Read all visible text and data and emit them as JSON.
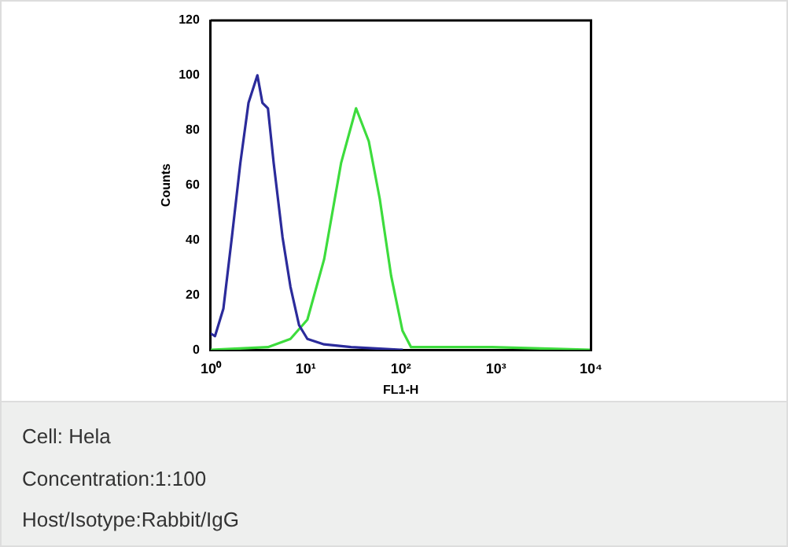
{
  "chart_data": {
    "type": "line",
    "xlabel": "FL1-H",
    "ylabel": "Counts",
    "log": "x",
    "xlim": [
      1,
      10000
    ],
    "xticks": [
      {
        "value": 1,
        "label": "10⁰"
      },
      {
        "value": 10,
        "label": "10¹"
      },
      {
        "value": 100,
        "label": "10²"
      },
      {
        "value": 1000,
        "label": "10³"
      },
      {
        "value": 10000,
        "label": "10⁴"
      }
    ],
    "ylim": [
      0,
      120
    ],
    "yticks": [
      0,
      20,
      40,
      60,
      80,
      100,
      120
    ],
    "grid": false,
    "legend": false,
    "marker": "none",
    "series": [
      {
        "color": "#2b2b9b",
        "x": [
          1,
          1.11,
          1.36,
          1.67,
          2.05,
          2.5,
          3.1,
          3.5,
          4.0,
          4.6,
          5.7,
          6.9,
          8.5,
          10.4,
          15.6,
          30,
          105
        ],
        "values": [
          6,
          5,
          15,
          41,
          68,
          90,
          100,
          90,
          88,
          68,
          41,
          23,
          9,
          4,
          2,
          1,
          0
        ]
      },
      {
        "color": "#3ddc3d",
        "x": [
          1,
          4.0,
          6.9,
          10.4,
          15.6,
          23.5,
          33.8,
          46,
          60,
          79,
          104,
          128,
          910,
          10000
        ],
        "values": [
          0,
          1,
          4,
          11,
          33,
          68,
          88,
          76,
          55,
          27,
          7,
          1,
          1,
          0
        ]
      }
    ],
    "annotations": [
      "Cell: Hela",
      "Concentration:1:100",
      "Host/Isotype:Rabbit/IgG"
    ]
  }
}
